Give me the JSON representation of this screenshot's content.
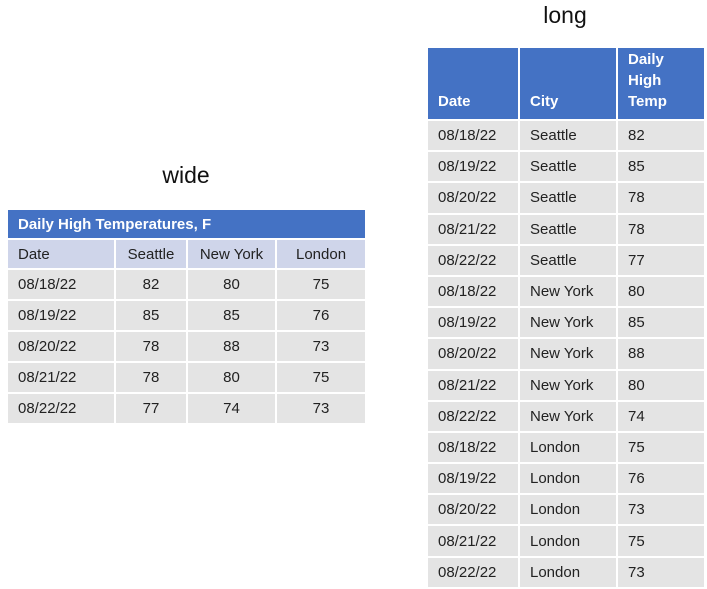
{
  "wide": {
    "caption": "wide",
    "title": "Daily High Temperatures, F",
    "headers": [
      "Date",
      "Seattle",
      "New York",
      "London"
    ],
    "rows": [
      [
        "08/18/22",
        "82",
        "80",
        "75"
      ],
      [
        "08/19/22",
        "85",
        "85",
        "76"
      ],
      [
        "08/20/22",
        "78",
        "88",
        "73"
      ],
      [
        "08/21/22",
        "78",
        "80",
        "75"
      ],
      [
        "08/22/22",
        "77",
        "74",
        "73"
      ]
    ]
  },
  "long": {
    "caption": "long",
    "headers": [
      "Date",
      "City",
      "Daily High Temp"
    ],
    "rows": [
      [
        "08/18/22",
        "Seattle",
        "82"
      ],
      [
        "08/19/22",
        "Seattle",
        "85"
      ],
      [
        "08/20/22",
        "Seattle",
        "78"
      ],
      [
        "08/21/22",
        "Seattle",
        "78"
      ],
      [
        "08/22/22",
        "Seattle",
        "77"
      ],
      [
        "08/18/22",
        "New York",
        "80"
      ],
      [
        "08/19/22",
        "New York",
        "85"
      ],
      [
        "08/20/22",
        "New York",
        "88"
      ],
      [
        "08/21/22",
        "New York",
        "80"
      ],
      [
        "08/22/22",
        "New York",
        "74"
      ],
      [
        "08/18/22",
        "London",
        "75"
      ],
      [
        "08/19/22",
        "London",
        "76"
      ],
      [
        "08/20/22",
        "London",
        "73"
      ],
      [
        "08/21/22",
        "London",
        "75"
      ],
      [
        "08/22/22",
        "London",
        "73"
      ]
    ]
  }
}
